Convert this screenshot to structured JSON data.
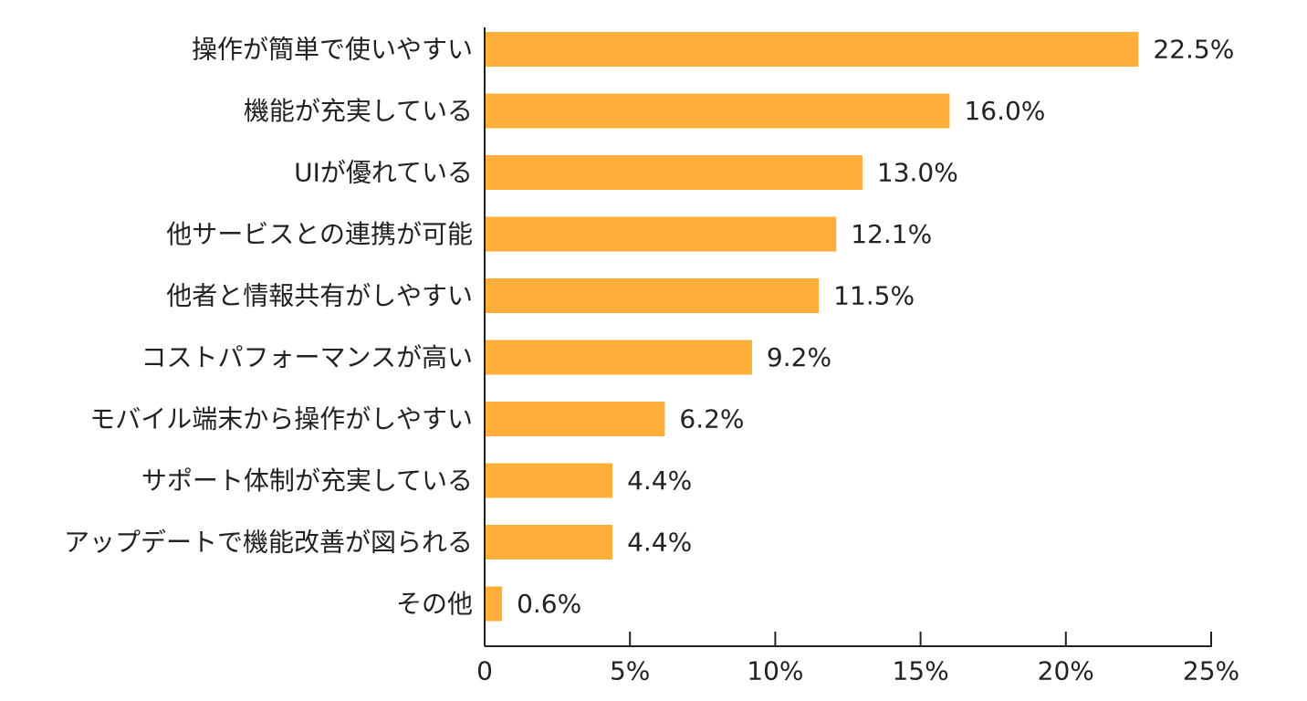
{
  "chart_data": {
    "type": "bar",
    "orientation": "horizontal",
    "categories": [
      "操作が簡単で使いやすい",
      "機能が充実している",
      "UIが優れている",
      "他サービスとの連携が可能",
      "他者と情報共有がしやすい",
      "コストパフォーマンスが高い",
      "モバイル端末から操作がしやすい",
      "サポート体制が充実している",
      "アップデートで機能改善が図られる",
      "その他"
    ],
    "values": [
      22.5,
      16.0,
      13.0,
      12.1,
      11.5,
      9.2,
      6.2,
      4.4,
      4.4,
      0.6
    ],
    "value_labels": [
      "22.5%",
      "16.0%",
      "13.0%",
      "12.1%",
      "11.5%",
      "9.2%",
      "6.2%",
      "4.4%",
      "4.4%",
      "0.6%"
    ],
    "xlim": [
      0,
      25
    ],
    "x_ticks": [
      0,
      5,
      10,
      15,
      20,
      25
    ],
    "x_tick_labels": [
      "0",
      "5%",
      "10%",
      "15%",
      "20%",
      "25%"
    ],
    "title": "",
    "xlabel": "",
    "ylabel": "",
    "grid": false,
    "bar_color": "#FFAE3A",
    "axis_color": "#222222"
  }
}
